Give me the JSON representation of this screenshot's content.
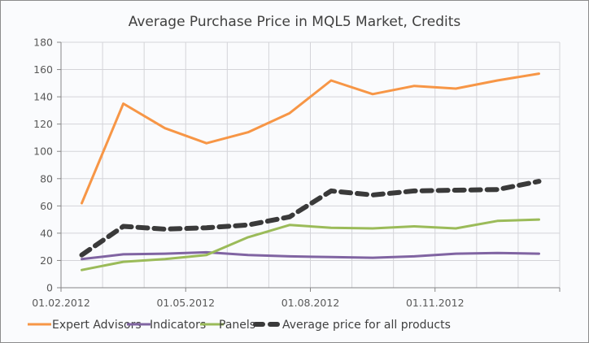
{
  "chart_data": {
    "type": "line",
    "title": "Average Purchase Price in MQL5 Market, Credits",
    "xlabel": "",
    "ylabel": "",
    "ylim": [
      0,
      180
    ],
    "yticks": [
      0,
      20,
      40,
      60,
      80,
      100,
      120,
      140,
      160,
      180
    ],
    "categories": [
      "01.02.2012",
      "01.03.2012",
      "01.04.2012",
      "01.05.2012",
      "01.06.2012",
      "01.07.2012",
      "01.08.2012",
      "01.09.2012",
      "01.10.2012",
      "01.11.2012",
      "01.12.2012",
      "01.01.2013"
    ],
    "xtick_labels": [
      {
        "index": 0,
        "label": "01.02.2012"
      },
      {
        "index": 3,
        "label": "01.05.2012"
      },
      {
        "index": 6,
        "label": "01.08.2012"
      },
      {
        "index": 9,
        "label": "01.11.2012"
      }
    ],
    "grid": true,
    "legend_position": "bottom",
    "series": [
      {
        "name": "Expert Advisors",
        "color": "#f79646",
        "style": "solid",
        "values": [
          62,
          135,
          117,
          106,
          114,
          128,
          152,
          142,
          148,
          146,
          152,
          157
        ]
      },
      {
        "name": "Indicators",
        "color": "#8064a2",
        "style": "solid",
        "values": [
          21,
          24.5,
          25,
          26,
          24,
          23,
          22.5,
          22,
          23,
          25,
          25.5,
          25
        ]
      },
      {
        "name": "Panels",
        "color": "#9bbb59",
        "style": "solid",
        "values": [
          13,
          19,
          21,
          24,
          37,
          46,
          44,
          43.5,
          45,
          43.5,
          49,
          50
        ]
      },
      {
        "name": "Average price for all products",
        "color": "#3a3a3a",
        "style": "dashed",
        "values": [
          24,
          45,
          43,
          44,
          46,
          52,
          71,
          68,
          71,
          71.5,
          72,
          78
        ]
      }
    ]
  }
}
